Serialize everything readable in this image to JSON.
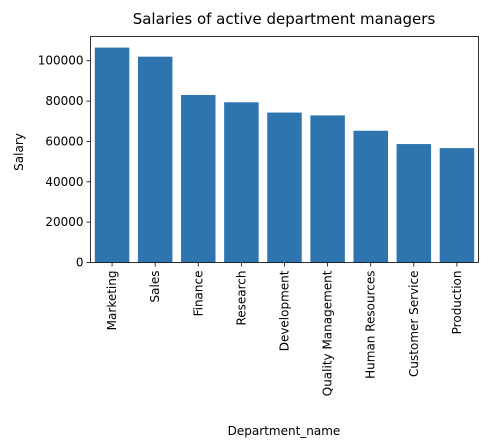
{
  "chart_data": {
    "type": "bar",
    "title": "Salaries of active department managers",
    "xlabel": "Department_name",
    "ylabel": "Salary",
    "categories": [
      "Marketing",
      "Sales",
      "Finance",
      "Research",
      "Development",
      "Quality Management",
      "Human Resources",
      "Customer Service",
      "Production"
    ],
    "values": [
      106500,
      102000,
      83000,
      79400,
      74300,
      72900,
      65300,
      58700,
      56700
    ],
    "ylim": [
      0,
      112000
    ],
    "yticks": [
      0,
      20000,
      40000,
      60000,
      80000,
      100000
    ],
    "bar_color": "#2e75b0",
    "grid": false,
    "legend": "none"
  }
}
